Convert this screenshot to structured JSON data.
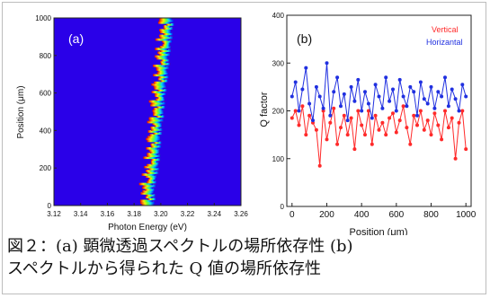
{
  "chart_data": [
    {
      "type": "heatmap",
      "panel_label": "(a)",
      "xlabel": "Photon Energy (eV)",
      "ylabel": "Position (μm)",
      "xlim": [
        3.12,
        3.26
      ],
      "ylim": [
        0,
        1000
      ],
      "x_tick_labels": [
        "3.12",
        "3.14",
        "3.16",
        "3.18",
        "3.20",
        "3.22",
        "3.24",
        "3.26"
      ],
      "y_tick_labels": [
        "0",
        "200",
        "400",
        "600",
        "800",
        "1000"
      ],
      "colormap": "jet",
      "peak_energy_eV": {
        "position_um": [
          0,
          100,
          200,
          300,
          400,
          500,
          600,
          700,
          800,
          900,
          1000
        ],
        "energy_eV": [
          3.195,
          3.195,
          3.198,
          3.199,
          3.2,
          3.202,
          3.203,
          3.205,
          3.206,
          3.208,
          3.209
        ]
      }
    },
    {
      "type": "scatter",
      "panel_label": "(b)",
      "xlabel": "Position (μm)",
      "ylabel": "Q factor",
      "xlim": [
        -30,
        1030
      ],
      "ylim": [
        0,
        400
      ],
      "x_tick_labels": [
        "0",
        "200",
        "400",
        "600",
        "800",
        "1000"
      ],
      "y_tick_labels": [
        "0",
        "100",
        "200",
        "300",
        "400"
      ],
      "series": [
        {
          "name": "Vertical",
          "color": "#ff2a2a",
          "x": [
            0,
            20,
            40,
            60,
            80,
            100,
            120,
            140,
            160,
            180,
            200,
            220,
            240,
            260,
            280,
            300,
            320,
            340,
            360,
            380,
            400,
            420,
            440,
            460,
            480,
            500,
            520,
            540,
            560,
            580,
            600,
            620,
            640,
            660,
            680,
            700,
            720,
            740,
            760,
            780,
            800,
            820,
            840,
            860,
            880,
            900,
            920,
            940,
            960,
            980,
            1000
          ],
          "y": [
            185,
            200,
            170,
            210,
            150,
            190,
            175,
            160,
            85,
            200,
            140,
            175,
            205,
            130,
            165,
            190,
            150,
            185,
            120,
            200,
            170,
            150,
            200,
            130,
            190,
            160,
            175,
            150,
            185,
            195,
            155,
            180,
            210,
            165,
            130,
            190,
            170,
            200,
            160,
            180,
            150,
            195,
            170,
            140,
            200,
            165,
            185,
            100,
            175,
            200,
            120
          ]
        },
        {
          "name": "Horizantal",
          "color": "#2030e0",
          "x": [
            0,
            20,
            40,
            60,
            80,
            100,
            120,
            140,
            160,
            180,
            200,
            220,
            240,
            260,
            280,
            300,
            320,
            340,
            360,
            380,
            400,
            420,
            440,
            460,
            480,
            500,
            520,
            540,
            560,
            580,
            600,
            620,
            640,
            660,
            680,
            700,
            720,
            740,
            760,
            780,
            800,
            820,
            840,
            860,
            880,
            900,
            920,
            940,
            960,
            980,
            1000
          ],
          "y": [
            230,
            260,
            200,
            245,
            290,
            215,
            180,
            250,
            230,
            205,
            300,
            190,
            240,
            270,
            210,
            235,
            180,
            250,
            220,
            265,
            200,
            240,
            215,
            185,
            255,
            230,
            205,
            270,
            220,
            245,
            200,
            265,
            230,
            210,
            250,
            240,
            190,
            260,
            225,
            215,
            250,
            205,
            240,
            230,
            270,
            210,
            245,
            225,
            200,
            255,
            230
          ]
        }
      ]
    }
  ],
  "caption": {
    "line1": "図２：(a) 顕微透過スペクトルの場所依存性 (b)",
    "line2": "スペクトルから得られた Q 値の場所依存性"
  }
}
